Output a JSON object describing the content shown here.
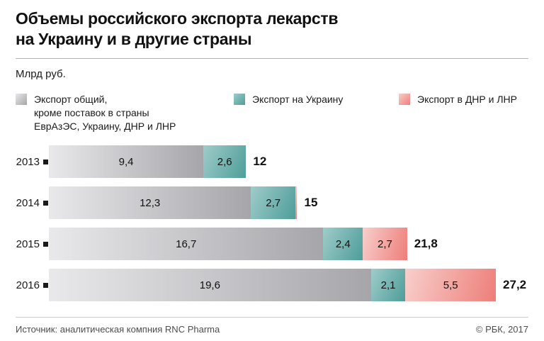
{
  "header": {
    "title": "Объемы российского экспорта лекарств\nна Украину и в другие страны",
    "unit": "Млрд руб."
  },
  "legend": [
    {
      "label": "Экспорт общий,\nкроме поставок в страны\nЕврАзЭС, Украину, ДНР и ЛНР",
      "color_from": "#e9e9eb",
      "color_to": "#a6a6aa"
    },
    {
      "label": "Экспорт на Украину",
      "color_from": "#9fccc9",
      "color_to": "#4e9d9a"
    },
    {
      "label": "Экспорт в ДНР и ЛНР",
      "color_from": "#f8cfcc",
      "color_to": "#ee7e79"
    }
  ],
  "chart_data": {
    "type": "bar",
    "orientation": "horizontal",
    "stacked": true,
    "title": "Объемы российского экспорта лекарств на Украину и в другие страны",
    "unit": "Млрд руб.",
    "categories": [
      "2013",
      "2014",
      "2015",
      "2016"
    ],
    "series": [
      {
        "name": "Экспорт общий, кроме поставок в страны ЕврАзЭС, Украину, ДНР и ЛНР",
        "values": [
          9.4,
          12.3,
          16.7,
          19.6
        ]
      },
      {
        "name": "Экспорт на Украину",
        "values": [
          2.6,
          2.7,
          2.4,
          2.1
        ]
      },
      {
        "name": "Экспорт в ДНР и ЛНР",
        "values": [
          null,
          0,
          2.7,
          5.5
        ]
      }
    ],
    "totals": [
      12,
      15,
      21.8,
      27.2
    ],
    "decimal_separator": ",",
    "legend_position": "top",
    "grid": false,
    "axis_labels": "none",
    "value_labels": "inside-segments"
  },
  "footer": {
    "source": "Источник: аналитическая компния RNC Pharma",
    "copyright": "© РБК, 2017"
  }
}
